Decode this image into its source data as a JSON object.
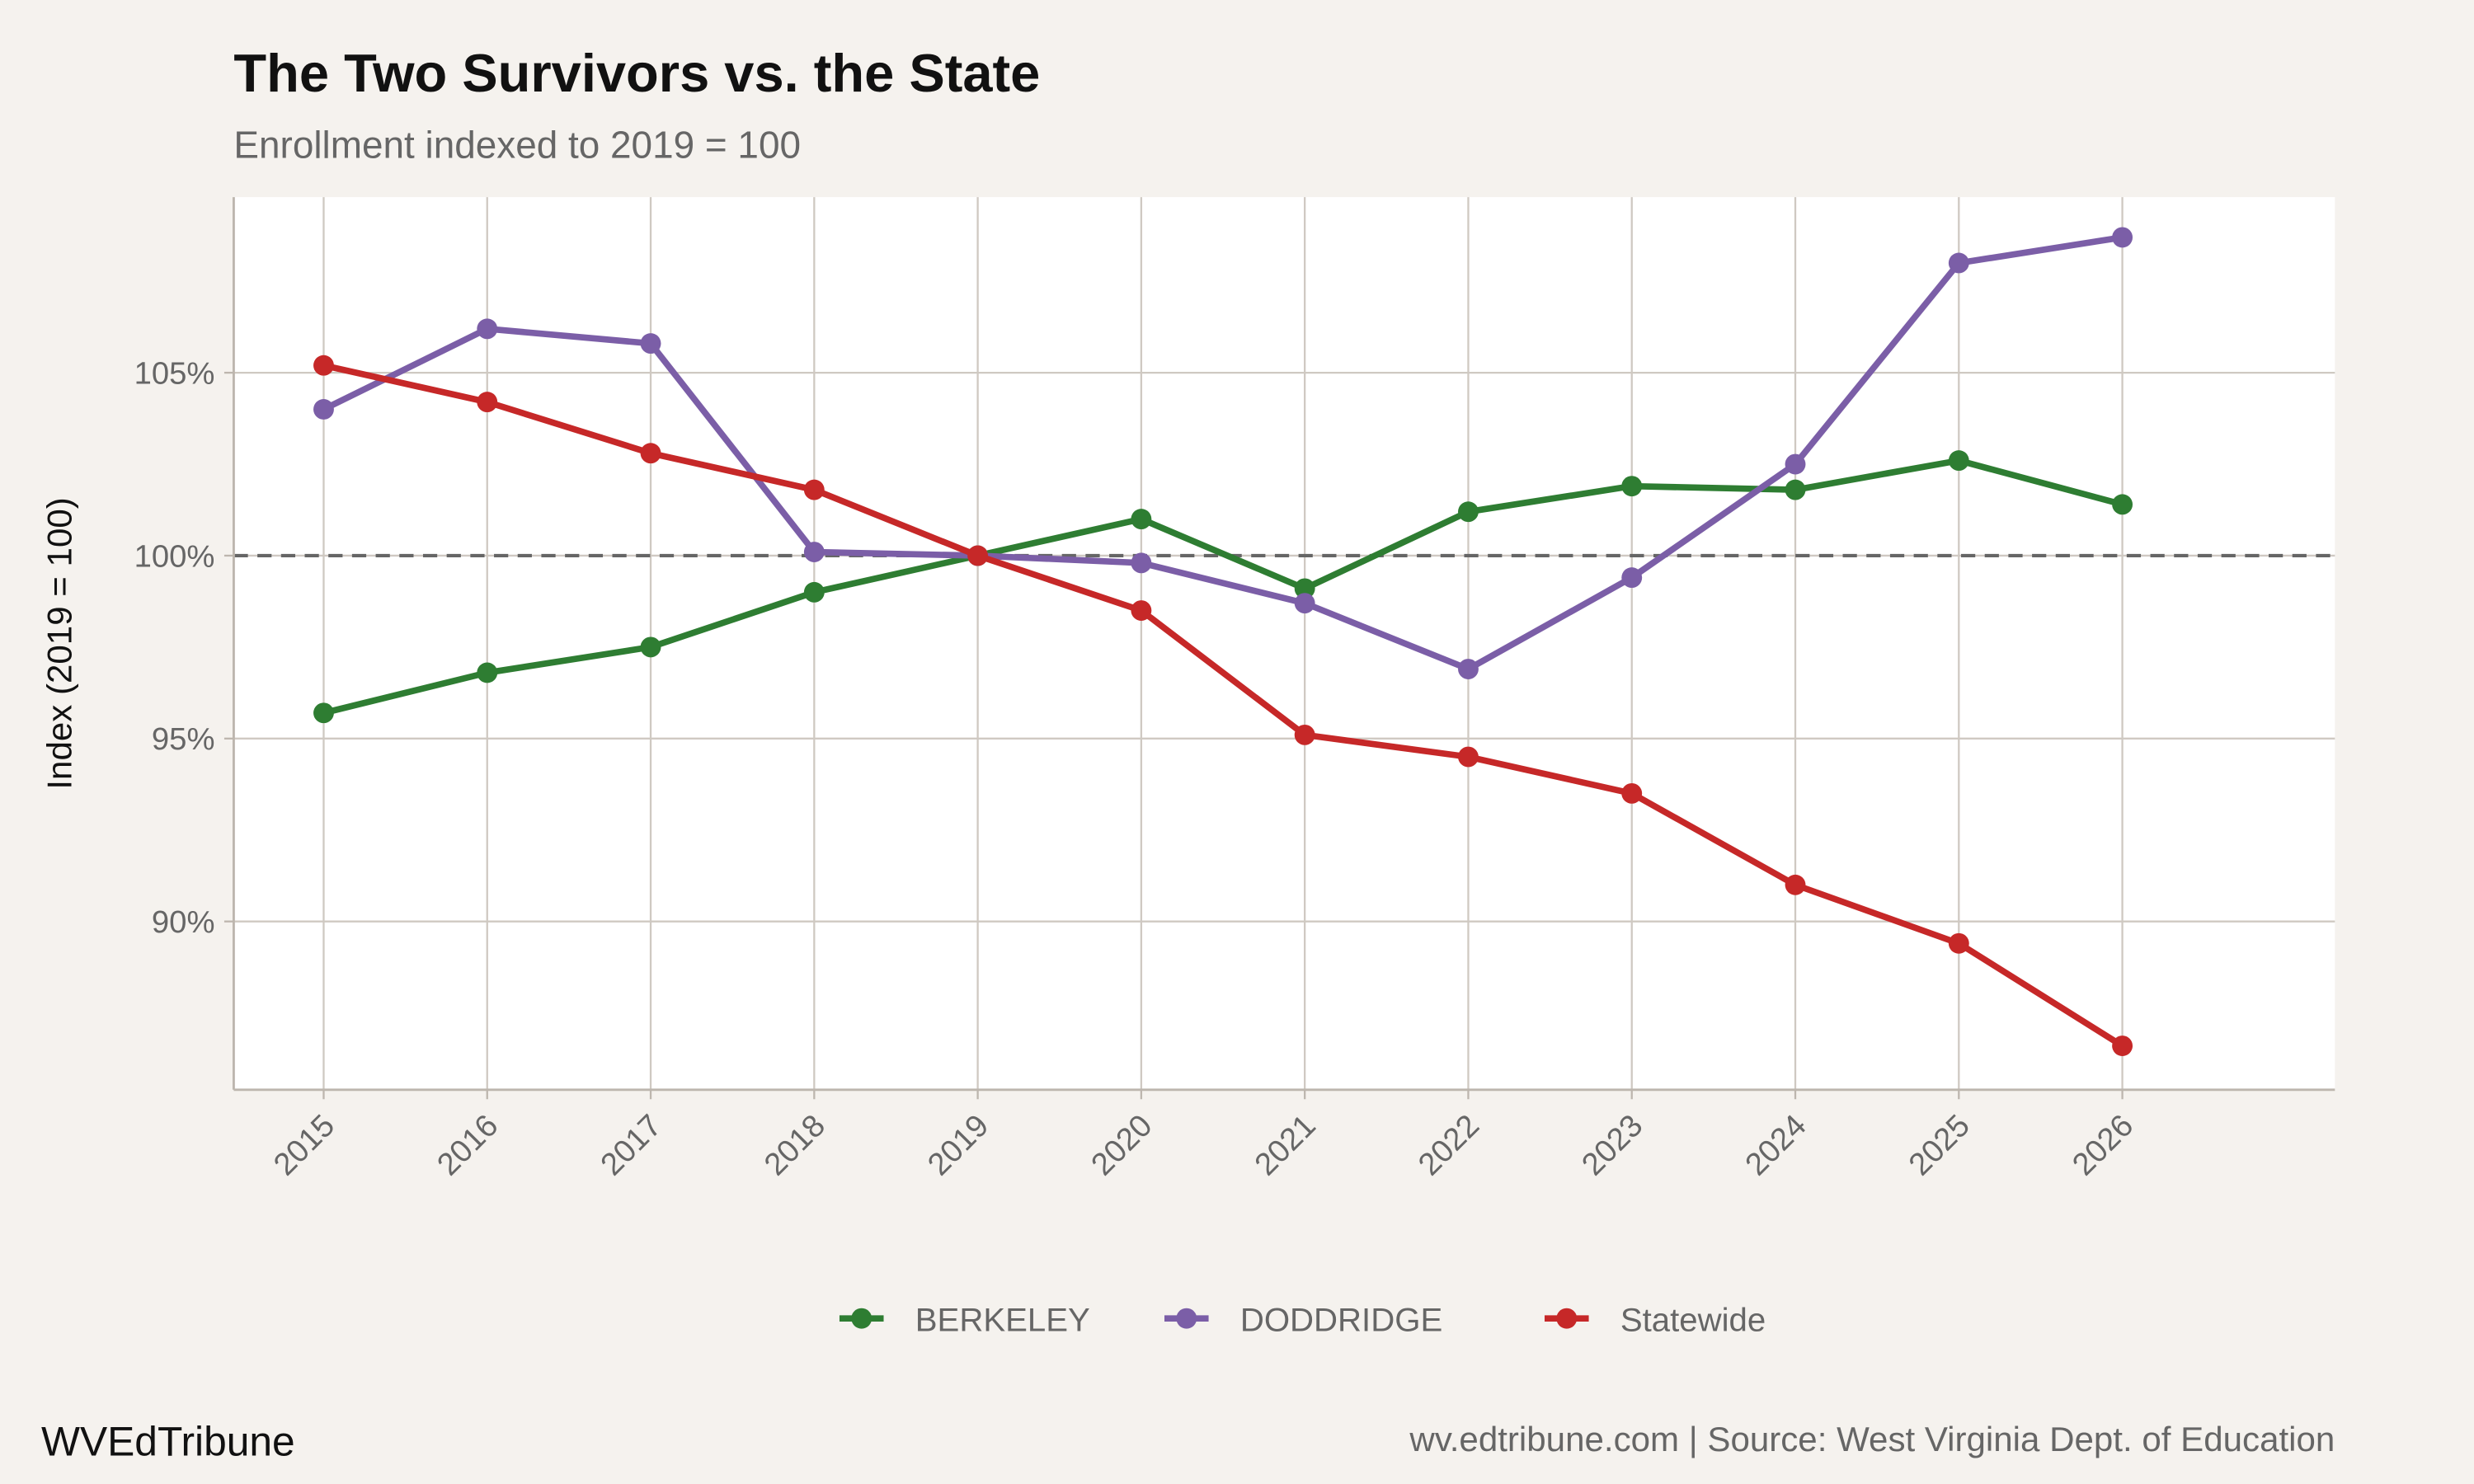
{
  "chart_data": {
    "type": "line",
    "title": "The Two Survivors vs. the State",
    "subtitle": "Enrollment indexed to 2019 = 100",
    "xlabel": "",
    "ylabel": "Index (2019 = 100)",
    "x": [
      2015,
      2016,
      2017,
      2018,
      2019,
      2020,
      2021,
      2022,
      2023,
      2024,
      2025,
      2026
    ],
    "xlim": [
      2014.45,
      2027.3
    ],
    "ylim": [
      85.4,
      109.8
    ],
    "yticks": [
      90,
      95,
      100,
      105
    ],
    "ytick_labels": [
      "90%",
      "95%",
      "100%",
      "105%"
    ],
    "reference_line": {
      "y": 100,
      "style": "dashed",
      "color": "#666666"
    },
    "grid": true,
    "legend_position": "bottom",
    "series": [
      {
        "name": "BERKELEY",
        "color": "#2e7d32",
        "values": [
          95.7,
          96.8,
          97.5,
          99.0,
          100.0,
          101.0,
          99.1,
          101.2,
          101.9,
          101.8,
          102.6,
          101.4
        ]
      },
      {
        "name": "DODDRIDGE",
        "color": "#7b5ea7",
        "values": [
          104.0,
          106.2,
          105.8,
          100.1,
          100.0,
          99.8,
          98.7,
          96.9,
          99.4,
          102.5,
          108.0,
          108.7
        ]
      },
      {
        "name": "Statewide",
        "color": "#c62828",
        "values": [
          105.2,
          104.2,
          102.8,
          101.8,
          100.0,
          98.5,
          95.1,
          94.5,
          93.5,
          91.0,
          89.4,
          86.6
        ]
      }
    ]
  },
  "footer": {
    "brand": "WVEdTribune",
    "source": "wv.edtribune.com | Source: West Virginia Dept. of Education"
  }
}
